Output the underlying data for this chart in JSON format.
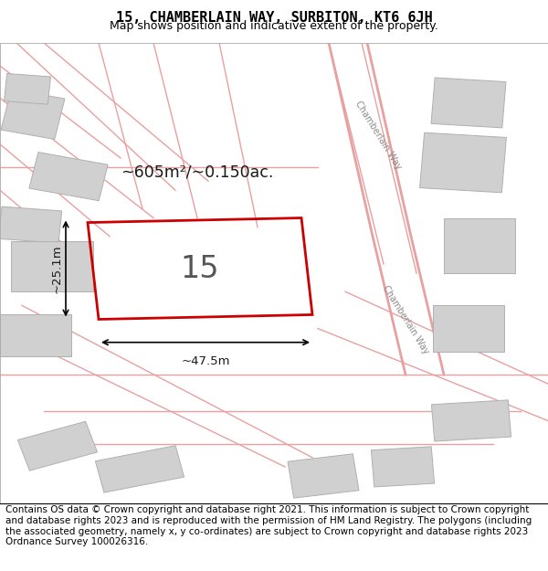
{
  "title": "15, CHAMBERLAIN WAY, SURBITON, KT6 6JH",
  "subtitle": "Map shows position and indicative extent of the property.",
  "footer": "Contains OS data © Crown copyright and database right 2021. This information is subject to Crown copyright and database rights 2023 and is reproduced with the permission of HM Land Registry. The polygons (including the associated geometry, namely x, y co-ordinates) are subject to Crown copyright and database rights 2023 Ordnance Survey 100026316.",
  "map_bg": "#f5efef",
  "road_color": "#e8a0a0",
  "building_fill": "#d0d0d0",
  "building_edge": "#b0b0b0",
  "highlight_edge": "#cc0000",
  "area_text": "~605m²/~0.150ac.",
  "label_15": "15",
  "dim_width": "~47.5m",
  "dim_height": "~25.1m",
  "road_label_top": "Chamberlain Way",
  "road_label_bottom": "Chamberlain Way",
  "title_fontsize": 11,
  "subtitle_fontsize": 9,
  "footer_fontsize": 7.5
}
